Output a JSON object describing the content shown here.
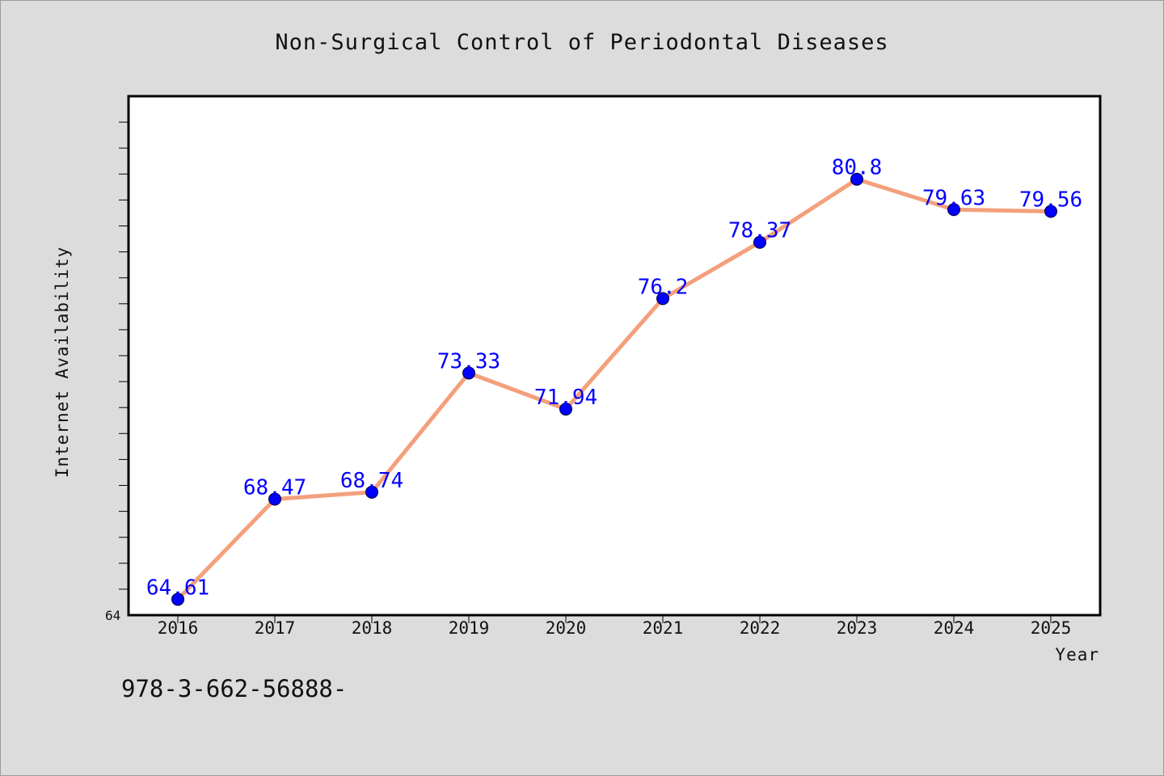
{
  "chart_data": {
    "type": "line",
    "title": "Non-Surgical Control of Periodontal Diseases",
    "xlabel": "Year",
    "ylabel": "Internet Availability",
    "x": [
      "2016",
      "2017",
      "2018",
      "2019",
      "2020",
      "2021",
      "2022",
      "2023",
      "2024",
      "2025"
    ],
    "series": [
      {
        "values": [
          64.61,
          68.47,
          68.74,
          73.33,
          71.94,
          76.2,
          78.37,
          80.8,
          79.63,
          79.56
        ],
        "data_labels": [
          "64.61",
          "68.47",
          "68.74",
          "73.33",
          "71.94",
          "76.2",
          "78.37",
          "80.8",
          "79.63",
          "79.56"
        ]
      }
    ],
    "ylim": [
      64,
      84
    ],
    "y_tick_labels": [
      "64"
    ],
    "grid": false,
    "line_color": "#f4a07c",
    "marker_color": "#0000ff",
    "label_color": "#0000ff",
    "background": "#dcdcdc",
    "plot_background": "#ffffff"
  },
  "footer_text": "978-3-662-56888-"
}
